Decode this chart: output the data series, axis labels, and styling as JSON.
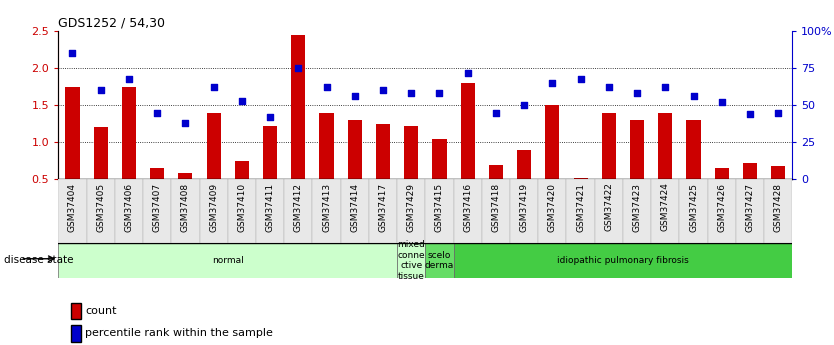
{
  "title": "GDS1252 / 54,30",
  "samples": [
    "GSM37404",
    "GSM37405",
    "GSM37406",
    "GSM37407",
    "GSM37408",
    "GSM37409",
    "GSM37410",
    "GSM37411",
    "GSM37412",
    "GSM37413",
    "GSM37414",
    "GSM37417",
    "GSM37429",
    "GSM37415",
    "GSM37416",
    "GSM37418",
    "GSM37419",
    "GSM37420",
    "GSM37421",
    "GSM37422",
    "GSM37423",
    "GSM37424",
    "GSM37425",
    "GSM37426",
    "GSM37427",
    "GSM37428"
  ],
  "bar_values": [
    1.75,
    1.2,
    1.75,
    0.65,
    0.58,
    1.4,
    0.75,
    1.22,
    2.45,
    1.4,
    1.3,
    1.25,
    1.22,
    1.05,
    1.8,
    0.7,
    0.9,
    1.5,
    0.52,
    1.4,
    1.3,
    1.4,
    1.3,
    0.65,
    0.72,
    0.68
  ],
  "dot_values": [
    85,
    60,
    68,
    45,
    38,
    62,
    53,
    42,
    75,
    62,
    56,
    60,
    58,
    58,
    72,
    45,
    50,
    65,
    68,
    62,
    58,
    62,
    56,
    52,
    44,
    45
  ],
  "ylim": [
    0.5,
    2.5
  ],
  "yticks": [
    0.5,
    1.0,
    1.5,
    2.0,
    2.5
  ],
  "bar_color": "#cc0000",
  "dot_color": "#0000cc",
  "disease_groups": [
    {
      "label": "normal",
      "start": 0,
      "end": 12,
      "color": "#ccffcc"
    },
    {
      "label": "mixed\nconne\nctive\ntissue",
      "start": 12,
      "end": 13,
      "color": "#ccffcc"
    },
    {
      "label": "scelo\nderma",
      "start": 13,
      "end": 14,
      "color": "#66dd66"
    },
    {
      "label": "idiopathic pulmonary fibrosis",
      "start": 14,
      "end": 26,
      "color": "#44cc44"
    }
  ],
  "disease_state_label": "disease state",
  "legend_count": "count",
  "legend_pct": "percentile rank within the sample",
  "right_yticks": [
    0,
    25,
    50,
    75,
    100
  ],
  "right_yticklabels": [
    "0",
    "25",
    "50",
    "75",
    "100%"
  ],
  "gridlines": [
    1.0,
    1.5,
    2.0
  ],
  "title_fontsize": 9,
  "tick_fontsize": 6.5,
  "legend_fontsize": 8
}
